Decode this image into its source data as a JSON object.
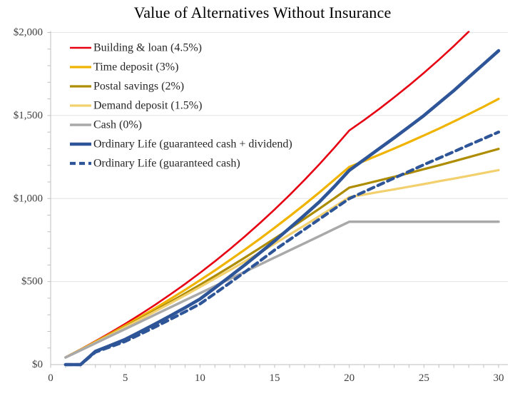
{
  "chart_data": {
    "type": "line",
    "title": "Value of Alternatives Without Insurance",
    "xlabel": "",
    "ylabel": "",
    "xlim": [
      0,
      30
    ],
    "ylim": [
      0,
      2000
    ],
    "x_ticks": [
      0,
      5,
      10,
      15,
      20,
      25,
      30
    ],
    "x_minor_tick_step": 1,
    "y_ticks": [
      {
        "value": 0,
        "label": "$0"
      },
      {
        "value": 500,
        "label": "$500"
      },
      {
        "value": 1000,
        "label": "$1,000"
      },
      {
        "value": 1500,
        "label": "$1,500"
      },
      {
        "value": 2000,
        "label": "$2,000"
      }
    ],
    "y_minor_tick_step": 100,
    "grid": "horizontal-major-only",
    "legend_position": "top-left-inside",
    "x_of_first_value": 1,
    "series": [
      {
        "id": "building-loan",
        "name": "Building & loan (4.5%)",
        "color": "#E60012",
        "style": "solid",
        "width": 2.6,
        "values": [
          45,
          92,
          141,
          192,
          246,
          302,
          360,
          422,
          485,
          552,
          622,
          695,
          771,
          851,
          934,
          1021,
          1112,
          1207,
          1306,
          1410,
          1473,
          1539,
          1609,
          1681,
          1757,
          1836,
          1918,
          2005
        ]
      },
      {
        "id": "time-deposit",
        "name": "Time deposit (3%)",
        "color": "#F0B400",
        "style": "solid",
        "width": 3.2,
        "values": [
          44,
          90,
          137,
          185,
          235,
          287,
          339,
          394,
          450,
          508,
          567,
          629,
          692,
          757,
          824,
          893,
          964,
          1037,
          1113,
          1190,
          1226,
          1263,
          1301,
          1340,
          1380,
          1421,
          1464,
          1508,
          1553,
          1600
        ]
      },
      {
        "id": "postal-savings",
        "name": "Postal savings (2%)",
        "color": "#AE8C00",
        "style": "solid",
        "width": 3.2,
        "values": [
          44,
          89,
          134,
          181,
          228,
          277,
          326,
          377,
          428,
          480,
          534,
          588,
          644,
          701,
          759,
          818,
          878,
          939,
          1002,
          1066,
          1087,
          1109,
          1131,
          1153,
          1177,
          1200,
          1224,
          1249,
          1274,
          1299
        ]
      },
      {
        "id": "demand-deposit",
        "name": "Demand deposit (1.5%)",
        "color": "#F3D06E",
        "style": "solid",
        "width": 3.2,
        "values": [
          44,
          88,
          133,
          178,
          225,
          272,
          320,
          368,
          417,
          467,
          518,
          569,
          621,
          674,
          728,
          783,
          838,
          894,
          951,
          1009,
          1024,
          1040,
          1055,
          1071,
          1087,
          1104,
          1120,
          1137,
          1154,
          1171
        ]
      },
      {
        "id": "cash",
        "name": "Cash (0%)",
        "color": "#A9A9A9",
        "style": "solid",
        "width": 3.5,
        "values": [
          43,
          86,
          129,
          172,
          215,
          258,
          301,
          344,
          387,
          430,
          473,
          516,
          559,
          602,
          645,
          688,
          731,
          774,
          817,
          860,
          860,
          860,
          860,
          860,
          860,
          860,
          860,
          860,
          860,
          860
        ]
      },
      {
        "id": "ordinary-life-dividend",
        "name": "Ordinary Life (guaranteed cash + dividend)",
        "color": "#2E5597",
        "style": "solid",
        "width": 4.6,
        "values": [
          0,
          0,
          80,
          115,
          152,
          198,
          245,
          293,
          343,
          395,
          462,
          530,
          600,
          672,
          745,
          822,
          900,
          980,
          1072,
          1170,
          1235,
          1300,
          1365,
          1432,
          1500,
          1575,
          1650,
          1730,
          1810,
          1890
        ]
      },
      {
        "id": "ordinary-life-guaranteed",
        "name": "Ordinary Life (guaranteed cash)",
        "color": "#2E5597",
        "style": "dashed",
        "width": 4.2,
        "values": [
          0,
          0,
          75,
          107,
          140,
          183,
          227,
          272,
          318,
          365,
          428,
          492,
          557,
          623,
          690,
          752,
          814,
          876,
          938,
          1000,
          1041,
          1082,
          1123,
          1163,
          1204,
          1243,
          1282,
          1322,
          1361,
          1400
        ]
      }
    ],
    "style_colors": {
      "gridline": "#E4E4E4",
      "axis": "#BFBFBF",
      "tick": "#BFBFBF",
      "axis_label_text": "#404040",
      "legend_text": "#262626",
      "title_text": "#000000"
    }
  }
}
